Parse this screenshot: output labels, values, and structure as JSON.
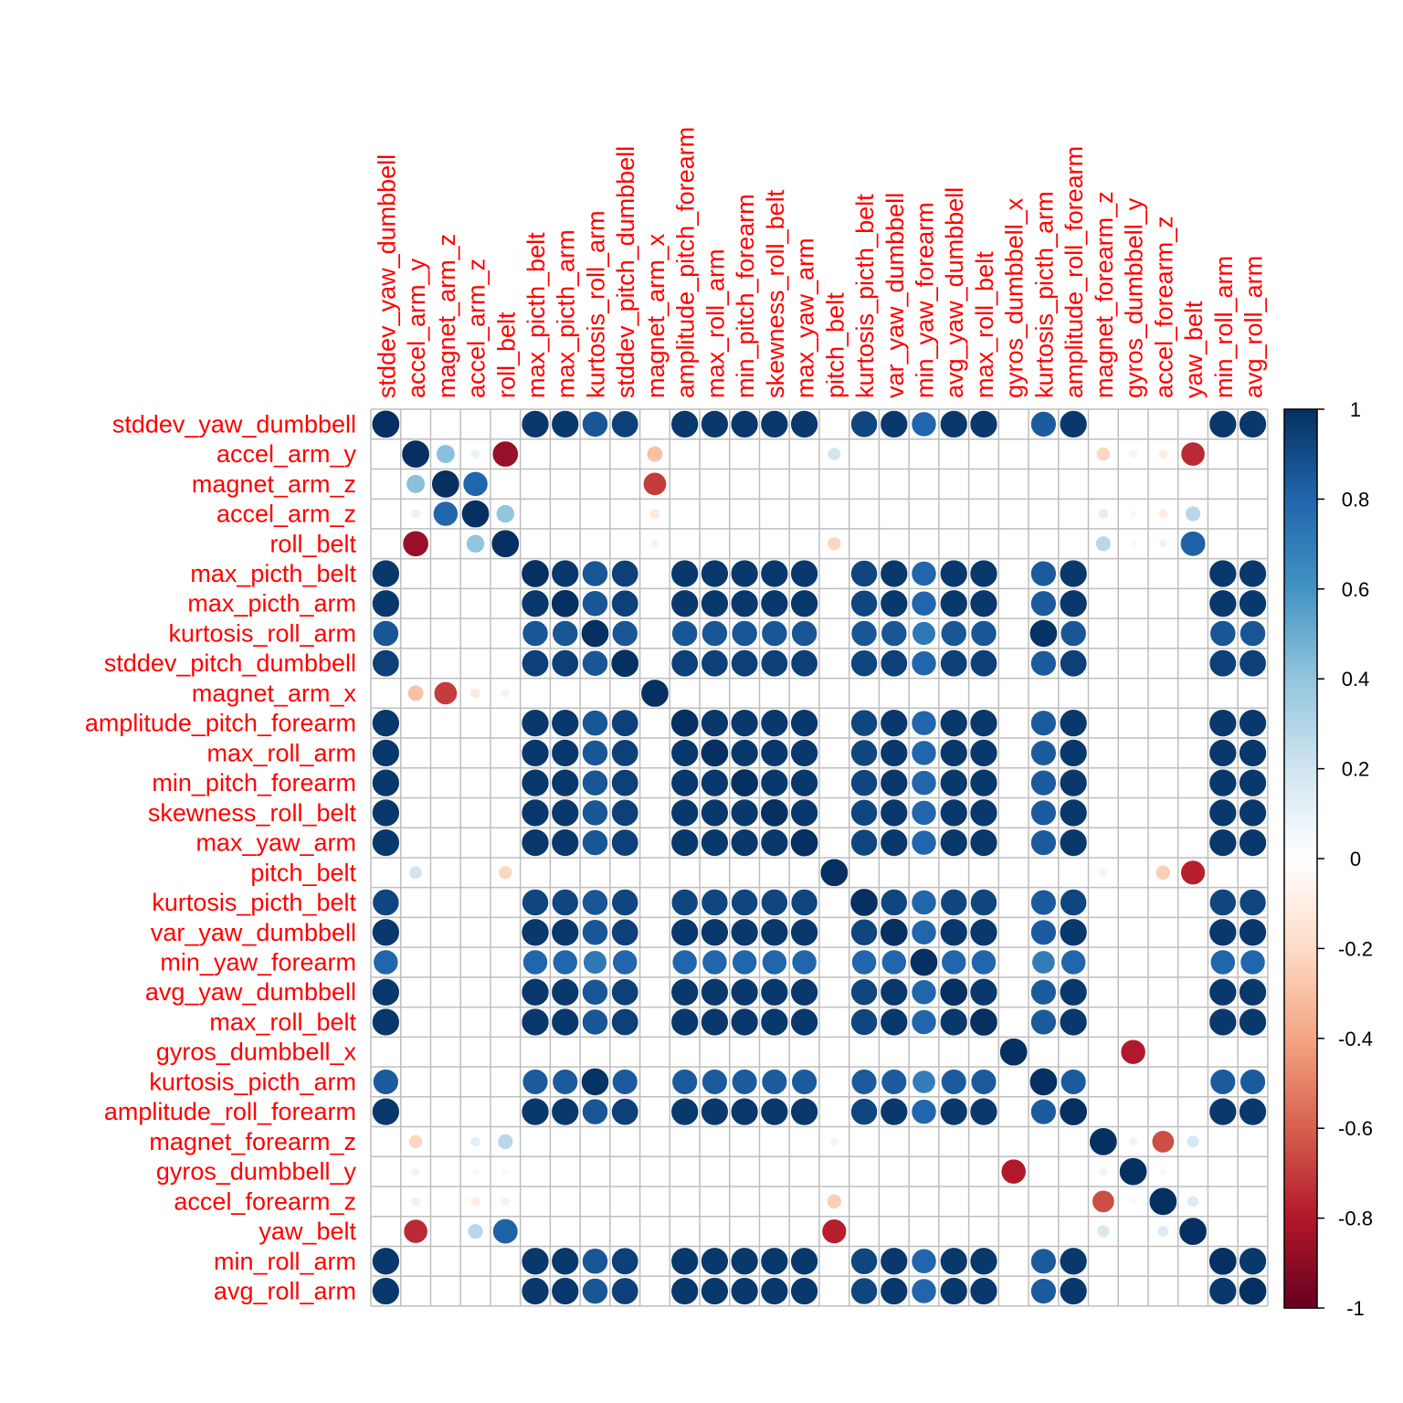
{
  "chart_data": {
    "type": "heatmap",
    "variables": [
      "stddev_yaw_dumbbell",
      "accel_arm_y",
      "magnet_arm_z",
      "accel_arm_z",
      "roll_belt",
      "max_picth_belt",
      "max_picth_arm",
      "kurtosis_roll_arm",
      "stddev_pitch_dumbbell",
      "magnet_arm_x",
      "amplitude_pitch_forearm",
      "max_roll_arm",
      "min_pitch_forearm",
      "skewness_roll_belt",
      "max_yaw_arm",
      "pitch_belt",
      "kurtosis_picth_belt",
      "var_yaw_dumbbell",
      "min_yaw_forearm",
      "avg_yaw_dumbbell",
      "max_roll_belt",
      "gyros_dumbbell_x",
      "kurtosis_picth_arm",
      "amplitude_roll_forearm",
      "magnet_forearm_z",
      "gyros_dumbbell_y",
      "accel_forearm_z",
      "yaw_belt",
      "min_roll_arm",
      "avg_roll_arm"
    ],
    "block_members": [
      0,
      5,
      6,
      7,
      8,
      10,
      11,
      12,
      13,
      14,
      16,
      17,
      18,
      19,
      20,
      22,
      23,
      28,
      29
    ],
    "block_default": 0.97,
    "block_values": [
      {
        "a": "kurtosis_roll_arm",
        "b": "*",
        "v": 0.86
      },
      {
        "a": "min_yaw_forearm",
        "b": "*",
        "v": 0.8
      },
      {
        "a": "kurtosis_picth_arm",
        "b": "*",
        "v": 0.84
      },
      {
        "a": "kurtosis_roll_arm",
        "b": "kurtosis_picth_arm",
        "v": 0.99
      },
      {
        "a": "kurtosis_roll_arm",
        "b": "min_yaw_forearm",
        "v": 0.72
      },
      {
        "a": "min_yaw_forearm",
        "b": "kurtosis_picth_arm",
        "v": 0.7
      },
      {
        "a": "kurtosis_picth_belt",
        "b": "*",
        "v": 0.92
      },
      {
        "a": "stddev_pitch_dumbbell",
        "b": "*",
        "v": 0.94
      }
    ],
    "offdiag": [
      {
        "a": "accel_arm_y",
        "b": "magnet_arm_z",
        "v": 0.42
      },
      {
        "a": "accel_arm_y",
        "b": "accel_arm_z",
        "v": 0.1
      },
      {
        "a": "accel_arm_y",
        "b": "roll_belt",
        "v": -0.87
      },
      {
        "a": "accel_arm_y",
        "b": "magnet_arm_x",
        "v": -0.3
      },
      {
        "a": "accel_arm_y",
        "b": "pitch_belt",
        "v": 0.2
      },
      {
        "a": "accel_arm_y",
        "b": "magnet_forearm_z",
        "v": -0.22
      },
      {
        "a": "accel_arm_y",
        "b": "gyros_dumbbell_y",
        "v": -0.08
      },
      {
        "a": "accel_arm_y",
        "b": "accel_forearm_z",
        "v": -0.1
      },
      {
        "a": "accel_arm_y",
        "b": "yaw_belt",
        "v": -0.75
      },
      {
        "a": "magnet_arm_z",
        "b": "accel_arm_z",
        "v": 0.8
      },
      {
        "a": "magnet_arm_z",
        "b": "magnet_arm_x",
        "v": -0.7
      },
      {
        "a": "accel_arm_z",
        "b": "roll_belt",
        "v": 0.4
      },
      {
        "a": "accel_arm_z",
        "b": "magnet_arm_x",
        "v": -0.12
      },
      {
        "a": "accel_arm_z",
        "b": "magnet_forearm_z",
        "v": 0.12
      },
      {
        "a": "accel_arm_z",
        "b": "gyros_dumbbell_y",
        "v": -0.05
      },
      {
        "a": "accel_arm_z",
        "b": "accel_forearm_z",
        "v": -0.1
      },
      {
        "a": "accel_arm_z",
        "b": "yaw_belt",
        "v": 0.28
      },
      {
        "a": "roll_belt",
        "b": "magnet_arm_x",
        "v": 0.08
      },
      {
        "a": "roll_belt",
        "b": "pitch_belt",
        "v": -0.22
      },
      {
        "a": "roll_belt",
        "b": "magnet_forearm_z",
        "v": 0.28
      },
      {
        "a": "roll_belt",
        "b": "gyros_dumbbell_y",
        "v": 0.05
      },
      {
        "a": "roll_belt",
        "b": "accel_forearm_z",
        "v": 0.08
      },
      {
        "a": "roll_belt",
        "b": "yaw_belt",
        "v": 0.82
      },
      {
        "a": "pitch_belt",
        "b": "magnet_forearm_z",
        "v": -0.08
      },
      {
        "a": "pitch_belt",
        "b": "accel_forearm_z",
        "v": -0.25
      },
      {
        "a": "pitch_belt",
        "b": "yaw_belt",
        "v": -0.78
      },
      {
        "a": "gyros_dumbbell_x",
        "b": "gyros_dumbbell_y",
        "v": -0.8
      },
      {
        "a": "magnet_forearm_z",
        "b": "gyros_dumbbell_y",
        "v": 0.08
      },
      {
        "a": "magnet_forearm_z",
        "b": "accel_forearm_z",
        "v": -0.65
      },
      {
        "a": "magnet_forearm_z",
        "b": "yaw_belt",
        "v": 0.18
      },
      {
        "a": "gyros_dumbbell_y",
        "b": "accel_forearm_z",
        "v": 0.05
      },
      {
        "a": "accel_forearm_z",
        "b": "yaw_belt",
        "v": 0.15
      }
    ],
    "color_scale": {
      "min": -1,
      "max": 1,
      "stops": [
        "#67001F",
        "#B2182B",
        "#D6604D",
        "#F4A582",
        "#FDDBC7",
        "#FFFFFF",
        "#D1E5F0",
        "#92C5DE",
        "#4393C3",
        "#2166AC",
        "#053061"
      ]
    },
    "legend_ticks": [
      "1",
      "0.8",
      "0.6",
      "0.4",
      "0.2",
      "0",
      "-0.2",
      "-0.4",
      "-0.6",
      "-0.8",
      "-1"
    ],
    "label_color": "#FF0000",
    "grid_color": "#BEBEBE",
    "grid": true,
    "legend_position": "right"
  }
}
